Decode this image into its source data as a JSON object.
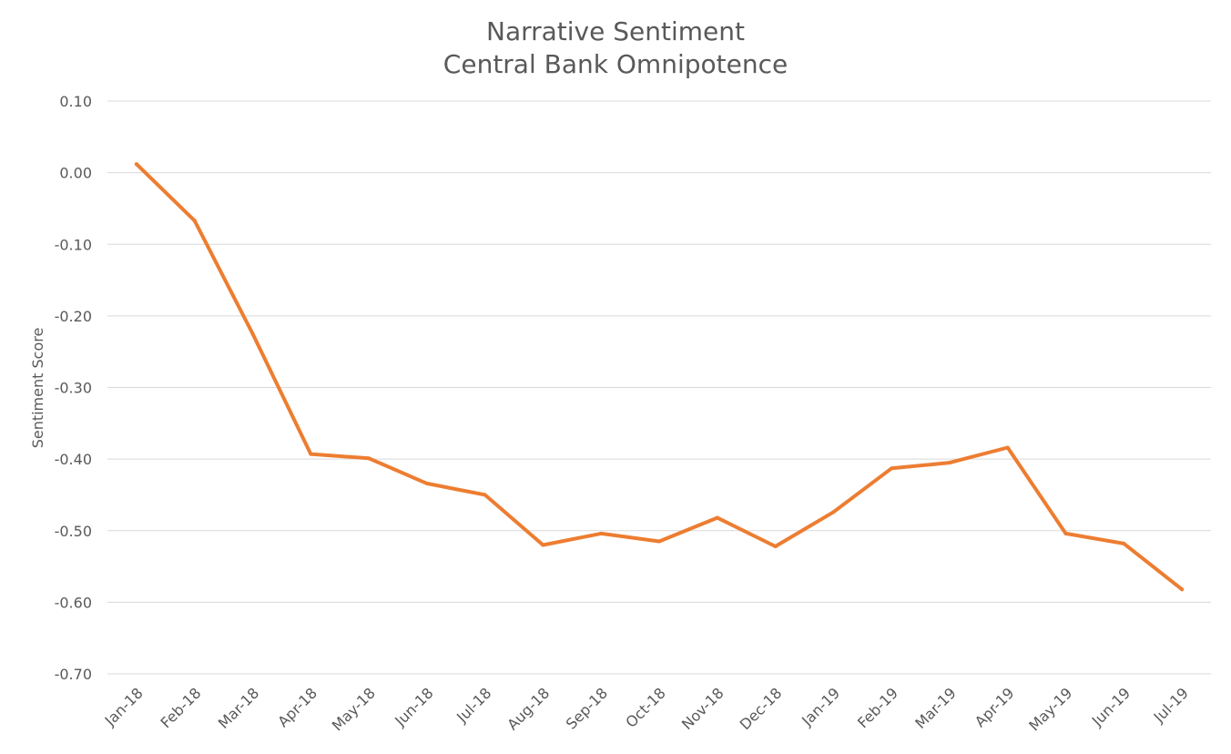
{
  "chart_data": {
    "type": "line",
    "title": "Narrative Sentiment",
    "subtitle": "Central Bank Omnipotence",
    "xlabel": "",
    "ylabel": "Sentiment Score",
    "categories": [
      "Jan-18",
      "Feb-18",
      "Mar-18",
      "Apr-18",
      "May-18",
      "Jun-18",
      "Jul-18",
      "Aug-18",
      "Sep-18",
      "Oct-18",
      "Nov-18",
      "Dec-18",
      "Jan-19",
      "Feb-19",
      "Mar-19",
      "Apr-19",
      "May-19",
      "Jun-19",
      "Jul-19"
    ],
    "series": [
      {
        "values": [
          0.012,
          -0.067,
          -0.225,
          -0.393,
          -0.399,
          -0.434,
          -0.45,
          -0.52,
          -0.504,
          -0.515,
          -0.482,
          -0.522,
          -0.474,
          -0.413,
          -0.405,
          -0.384,
          -0.504,
          -0.518,
          -0.582
        ]
      }
    ],
    "ylim": [
      -0.7,
      0.1
    ],
    "yticks": [
      "0.10",
      "0.00",
      "-0.10",
      "-0.20",
      "-0.30",
      "-0.40",
      "-0.50",
      "-0.60",
      "-0.70"
    ],
    "grid": true,
    "legend": "none",
    "colors": {
      "series": "#ED7D31",
      "grid": "#D9D9D9",
      "text": "#595959"
    }
  }
}
